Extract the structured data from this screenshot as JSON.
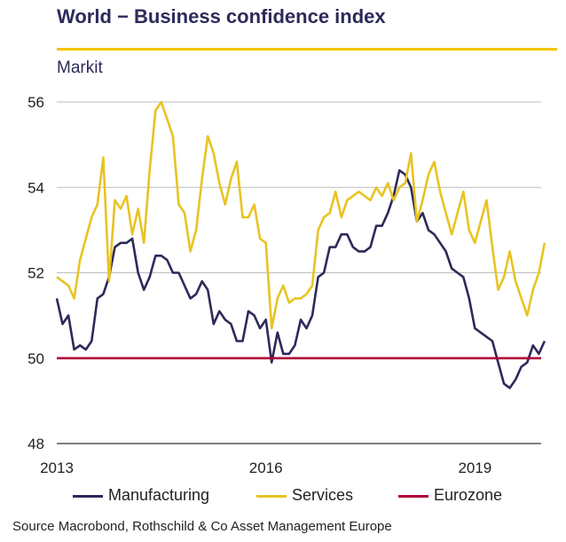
{
  "header": {
    "title": "World − Business confidence index",
    "subtitle": "Markit"
  },
  "source": "Source Macrobond, Rothschild & Co Asset Management Europe",
  "colors": {
    "manufacturing": "#2d2a5a",
    "services": "#e8c322",
    "eurozone": "#b0003a",
    "title": "#2d2a5a",
    "accent_rule": "#f2c500",
    "grid": "#bdbdbd"
  },
  "chart_data": {
    "type": "line",
    "title": "World − Business confidence index",
    "subtitle": "Markit",
    "x_start": 2013.0,
    "x_step": 0.08333,
    "xlim": [
      2013.0,
      2019.95
    ],
    "x_ticks": [
      {
        "value": 2013,
        "label": "2013"
      },
      {
        "value": 2016,
        "label": "2016"
      },
      {
        "value": 2019,
        "label": "2019"
      }
    ],
    "ylim": [
      48,
      56
    ],
    "y_ticks": [
      {
        "value": 48,
        "label": "48"
      },
      {
        "value": 50,
        "label": "50"
      },
      {
        "value": 52,
        "label": "52"
      },
      {
        "value": 54,
        "label": "54"
      },
      {
        "value": 56,
        "label": "56"
      }
    ],
    "grid": true,
    "legend_position": "bottom",
    "series": [
      {
        "name": "Manufacturing",
        "color": "#2d2a5a",
        "values": [
          51.4,
          50.8,
          51.0,
          50.2,
          50.3,
          50.2,
          50.4,
          51.4,
          51.5,
          51.9,
          52.6,
          52.7,
          52.7,
          52.8,
          52.0,
          51.6,
          51.9,
          52.4,
          52.4,
          52.3,
          52.0,
          52.0,
          51.7,
          51.4,
          51.5,
          51.8,
          51.6,
          50.8,
          51.1,
          50.9,
          50.8,
          50.4,
          50.4,
          51.1,
          51.0,
          50.7,
          50.9,
          49.9,
          50.6,
          50.1,
          50.1,
          50.3,
          50.9,
          50.7,
          51.0,
          51.9,
          52.0,
          52.6,
          52.6,
          52.9,
          52.9,
          52.6,
          52.5,
          52.5,
          52.6,
          53.1,
          53.1,
          53.4,
          53.8,
          54.4,
          54.3,
          54.0,
          53.2,
          53.4,
          53.0,
          52.9,
          52.7,
          52.5,
          52.1,
          52.0,
          51.9,
          51.4,
          50.7,
          50.6,
          50.5,
          50.4,
          49.9,
          49.4,
          49.3,
          49.5,
          49.8,
          49.9,
          50.3,
          50.1,
          50.4
        ]
      },
      {
        "name": "Services",
        "color": "#e8c322",
        "values": [
          51.9,
          51.8,
          51.7,
          51.4,
          52.3,
          52.8,
          53.3,
          53.6,
          54.7,
          51.8,
          53.7,
          53.5,
          53.8,
          52.9,
          53.5,
          52.7,
          54.4,
          55.8,
          56.0,
          55.6,
          55.2,
          53.6,
          53.4,
          52.5,
          53.0,
          54.2,
          55.2,
          54.8,
          54.1,
          53.6,
          54.2,
          54.6,
          53.3,
          53.3,
          53.6,
          52.8,
          52.7,
          50.7,
          51.4,
          51.7,
          51.3,
          51.4,
          51.4,
          51.5,
          51.7,
          53.0,
          53.3,
          53.4,
          53.9,
          53.3,
          53.7,
          53.8,
          53.9,
          53.8,
          53.7,
          54.0,
          53.8,
          54.1,
          53.7,
          54.0,
          54.1,
          54.8,
          53.2,
          53.7,
          54.3,
          54.6,
          53.9,
          53.4,
          52.9,
          53.4,
          53.9,
          53.0,
          52.7,
          53.2,
          53.7,
          52.6,
          51.6,
          51.9,
          52.5,
          51.8,
          51.4,
          51.0,
          51.6,
          52.0,
          52.7
        ]
      },
      {
        "name": "Eurozone",
        "color": "#b0003a",
        "values": [
          50,
          50
        ]
      }
    ]
  }
}
